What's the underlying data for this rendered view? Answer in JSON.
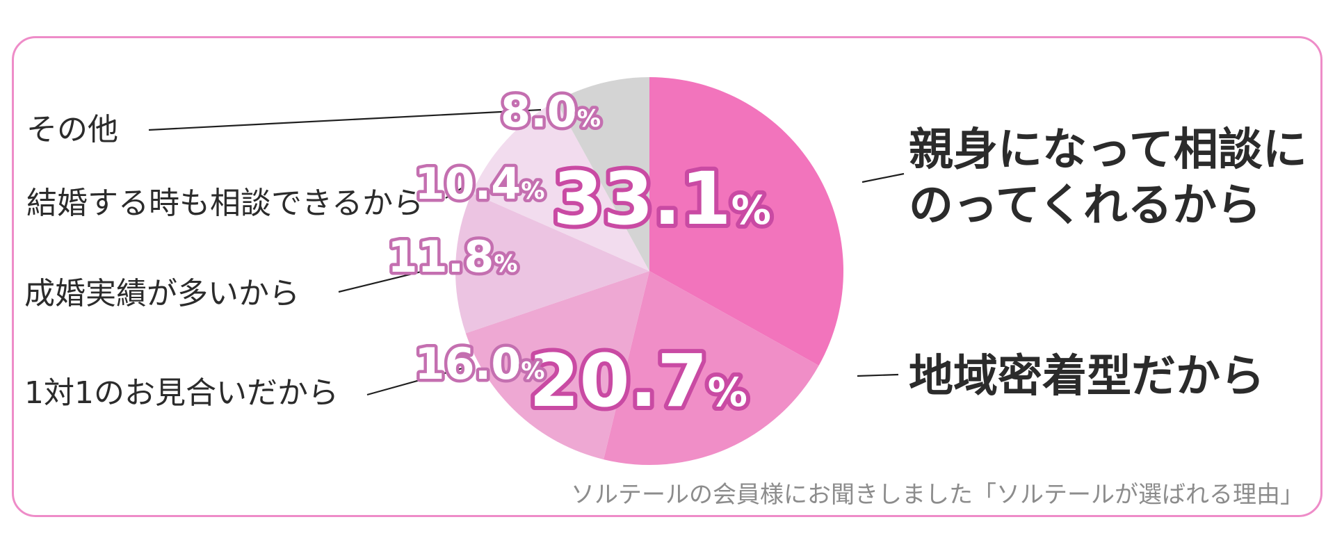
{
  "caption": "ソルテールの会員様にお聞きしました「ソルテールが選ばれる理由」",
  "frame_color": "#ee8cc8",
  "chart_data": {
    "type": "pie",
    "title": "",
    "unit": "%",
    "slices": [
      {
        "label": "親身になって相談にのってくれるから",
        "label_lines": [
          "親身になって相談に",
          "のってくれるから"
        ],
        "value": 33.1,
        "color": "#f274bc",
        "emphasis": true
      },
      {
        "label": "地域密着型だから",
        "label_lines": [
          "地域密着型だから"
        ],
        "value": 20.7,
        "color": "#f08ec7",
        "emphasis": true
      },
      {
        "label": "1対1のお見合いだから",
        "label_lines": [
          "1対1のお見合いだから"
        ],
        "value": 16.0,
        "color": "#eea8d3",
        "emphasis": false
      },
      {
        "label": "成婚実績が多いから",
        "label_lines": [
          "成婚実績が多いから"
        ],
        "value": 11.8,
        "color": "#ecc4e2",
        "emphasis": false
      },
      {
        "label": "結婚する時も相談できるから",
        "label_lines": [
          "結婚する時も相談できるから"
        ],
        "value": 10.4,
        "color": "#f2dcee",
        "emphasis": false
      },
      {
        "label": "その他",
        "label_lines": [
          "その他"
        ],
        "value": 8.0,
        "color": "#d4d4d4",
        "emphasis": false
      }
    ]
  }
}
